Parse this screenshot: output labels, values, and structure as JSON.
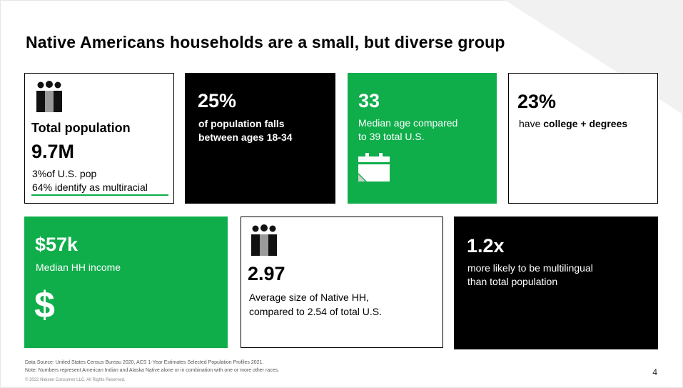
{
  "title": "Native Americans  households  are a small,  but diverse group",
  "cards": {
    "population": {
      "label": "Total population",
      "value": "9.7M",
      "line1": "3%of U.S. pop",
      "line2": "64% identify as multiracial",
      "icon": "people-icon"
    },
    "age_share": {
      "value": "25%",
      "line1": "of population falls",
      "line2": "between ages 18-34"
    },
    "median_age": {
      "value": "33",
      "line1": "Median age compared",
      "line2": "to 39 total U.S.",
      "icon": "calendar-icon"
    },
    "college": {
      "value": "23%",
      "prefix": "have ",
      "bold": "college + degrees"
    },
    "income": {
      "value": "$57k",
      "line1": "Median HH income",
      "icon": "dollar-icon",
      "glyph": "$"
    },
    "household": {
      "value": "2.97",
      "line1": "Average size of Native HH,",
      "line2": "compared to 2.54 of total U.S.",
      "icon": "people-icon"
    },
    "multilingual": {
      "value": "1.2x",
      "line1": "more likely to be multilingual",
      "line2": "than total population"
    }
  },
  "footer": {
    "source": "Data Source:  United States  Census  Bureau  2020,  ACS  1-Year  Estimates  Selected  Population  Profiles  2021.",
    "note": "Note:  Numbers  represent  American  Indian   and  Alaska  Native  alone  or  in combination   with  one  or  more  other  races.",
    "copyright": "© 2022 Nielsen Consumer LLC. All Rights Reserved.",
    "page": "4"
  },
  "colors": {
    "green": "#0fae4b",
    "black": "#000000",
    "white": "#ffffff"
  }
}
